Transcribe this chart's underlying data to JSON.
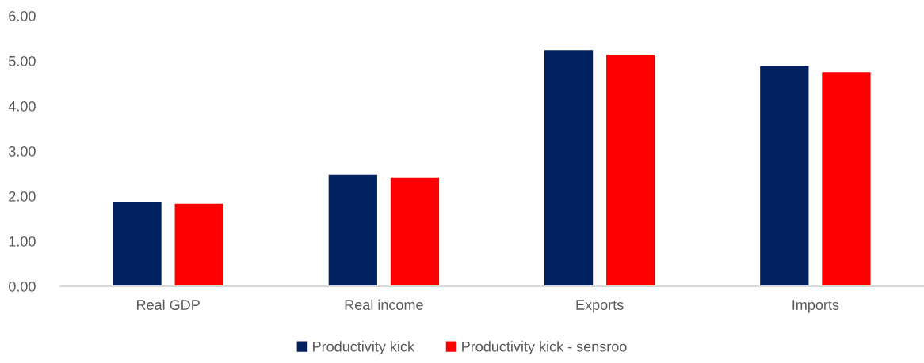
{
  "chart_data": {
    "type": "bar",
    "categories": [
      "Real GDP",
      "Real income",
      "Exports",
      "Imports"
    ],
    "series": [
      {
        "name": "Productivity kick",
        "color": "#002060",
        "values": [
          1.86,
          2.48,
          5.24,
          4.88
        ]
      },
      {
        "name": "Productivity kick - sensroo",
        "color": "#ff0000",
        "values": [
          1.83,
          2.41,
          5.14,
          4.75
        ]
      }
    ],
    "ylim": [
      0,
      6
    ],
    "yticks": [
      {
        "value": 0,
        "label": "0.00"
      },
      {
        "value": 1,
        "label": "1.00"
      },
      {
        "value": 2,
        "label": "2.00"
      },
      {
        "value": 3,
        "label": "3.00"
      },
      {
        "value": 4,
        "label": "4.00"
      },
      {
        "value": 5,
        "label": "5.00"
      },
      {
        "value": 6,
        "label": "6.00"
      }
    ],
    "grid": false,
    "legend": "bottom"
  }
}
